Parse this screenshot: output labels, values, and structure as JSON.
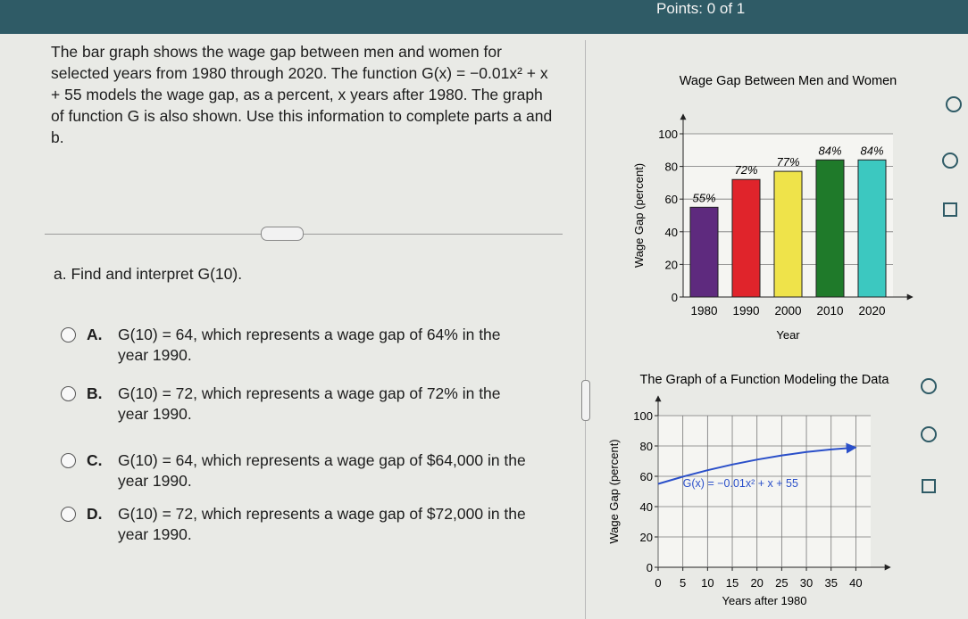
{
  "header": {
    "points": "Points: 0 of 1"
  },
  "question": {
    "intro": "The bar graph shows the wage gap between men and women for selected years from 1980 through 2020. The function G(x) = −0.01x² + x + 55 models the wage gap, as a percent, x years after 1980. The graph of function G is also shown. Use this information to complete parts a and b."
  },
  "part_a": {
    "prompt": "a. Find and interpret G(10).",
    "options": [
      {
        "letter": "A.",
        "text": "G(10) = 64, which represents a wage gap of 64% in the year 1990."
      },
      {
        "letter": "B.",
        "text": "G(10) = 72, which represents a wage gap of 72% in the year 1990."
      },
      {
        "letter": "C.",
        "text": "G(10) = 64, which represents a wage gap of $64,000 in the year 1990."
      },
      {
        "letter": "D.",
        "text": "G(10) = 72, which represents a wage gap of $72,000 in the year 1990."
      }
    ]
  },
  "chart_data": [
    {
      "type": "bar",
      "title": "Wage Gap Between Men and Women",
      "categories": [
        "1980",
        "1990",
        "2000",
        "2010",
        "2020"
      ],
      "values": [
        55,
        72,
        77,
        84,
        84
      ],
      "value_labels": [
        "55%",
        "72%",
        "77%",
        "84%",
        "84%"
      ],
      "colors": [
        "#5e2a7e",
        "#e0242b",
        "#efe34a",
        "#1f7a2a",
        "#3cc8c0"
      ],
      "xlabel": "Year",
      "ylabel": "Wage Gap (percent)",
      "ylim": [
        0,
        100
      ],
      "yticks": [
        0,
        20,
        40,
        60,
        80,
        100
      ],
      "grid": true
    },
    {
      "type": "line",
      "title": "The Graph of a Function Modeling the Data",
      "x": [
        0,
        5,
        10,
        15,
        20,
        25,
        30,
        35,
        40
      ],
      "values": [
        55,
        59.75,
        64,
        67.75,
        71,
        73.75,
        76,
        77.75,
        79
      ],
      "color": "#2a4fc9",
      "annotation": "G(x) = −0.01x² + x + 55",
      "xlabel": "Years after 1980",
      "ylabel": "Wage Gap (percent)",
      "xlim": [
        0,
        43
      ],
      "xticks": [
        0,
        5,
        10,
        15,
        20,
        25,
        30,
        35,
        40
      ],
      "ylim": [
        0,
        100
      ],
      "yticks": [
        0,
        20,
        40,
        60,
        80,
        100
      ],
      "grid": true
    }
  ]
}
